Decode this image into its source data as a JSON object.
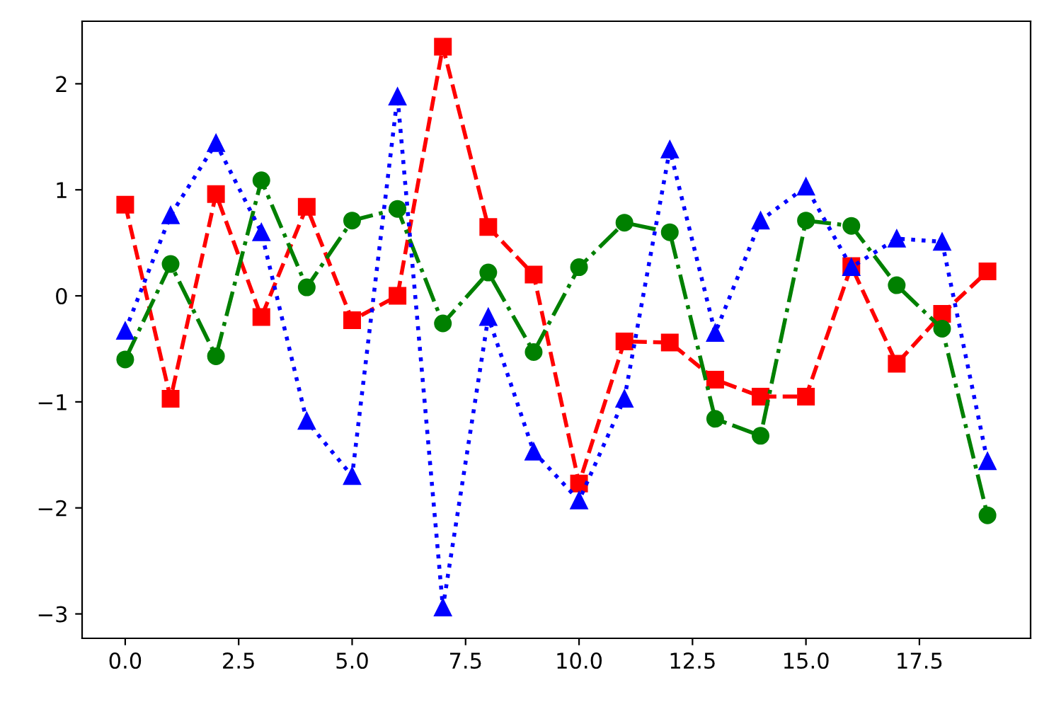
{
  "chart_data": {
    "type": "line",
    "x": [
      0,
      1,
      2,
      3,
      4,
      5,
      6,
      7,
      8,
      9,
      10,
      11,
      12,
      13,
      14,
      15,
      16,
      17,
      18,
      19
    ],
    "series": [
      {
        "color": "#ff0000",
        "marker": "square",
        "line_style": "dashed",
        "values": [
          0.86,
          -0.97,
          0.96,
          -0.2,
          0.84,
          -0.23,
          0.0,
          2.35,
          0.65,
          0.2,
          -1.77,
          -0.43,
          -0.44,
          -0.79,
          -0.95,
          -0.95,
          0.28,
          -0.64,
          -0.17,
          0.23
        ]
      },
      {
        "color": "#008000",
        "marker": "circle",
        "line_style": "dashdot",
        "values": [
          -0.6,
          0.3,
          -0.57,
          1.09,
          0.08,
          0.71,
          0.82,
          -0.26,
          0.22,
          -0.53,
          0.27,
          0.69,
          0.6,
          -1.16,
          -1.32,
          0.71,
          0.66,
          0.1,
          -0.31,
          -2.07
        ]
      },
      {
        "color": "#0000ff",
        "marker": "triangle",
        "line_style": "dotted",
        "values": [
          -0.33,
          0.76,
          1.44,
          0.6,
          -1.18,
          -1.7,
          1.88,
          -2.94,
          -0.2,
          -1.47,
          -1.93,
          -0.97,
          1.38,
          -0.35,
          0.71,
          1.03,
          0.27,
          0.54,
          0.51,
          -1.56
        ]
      }
    ],
    "xlim": [
      -0.95,
      19.95
    ],
    "xticks": [
      {
        "value": 0,
        "label": "0.0"
      },
      {
        "value": 2.5,
        "label": "2.5"
      },
      {
        "value": 5,
        "label": "5.0"
      },
      {
        "value": 7.5,
        "label": "7.5"
      },
      {
        "value": 10,
        "label": "10.0"
      },
      {
        "value": 12.5,
        "label": "12.5"
      },
      {
        "value": 15,
        "label": "15.0"
      },
      {
        "value": 17.5,
        "label": "17.5"
      }
    ],
    "ylim": [
      -3.23,
      2.59
    ],
    "yticks": [
      {
        "value": -3,
        "label": "−3"
      },
      {
        "value": -2,
        "label": "−2"
      },
      {
        "value": -1,
        "label": "−1"
      },
      0,
      1,
      2
    ],
    "tick_labels": true
  }
}
